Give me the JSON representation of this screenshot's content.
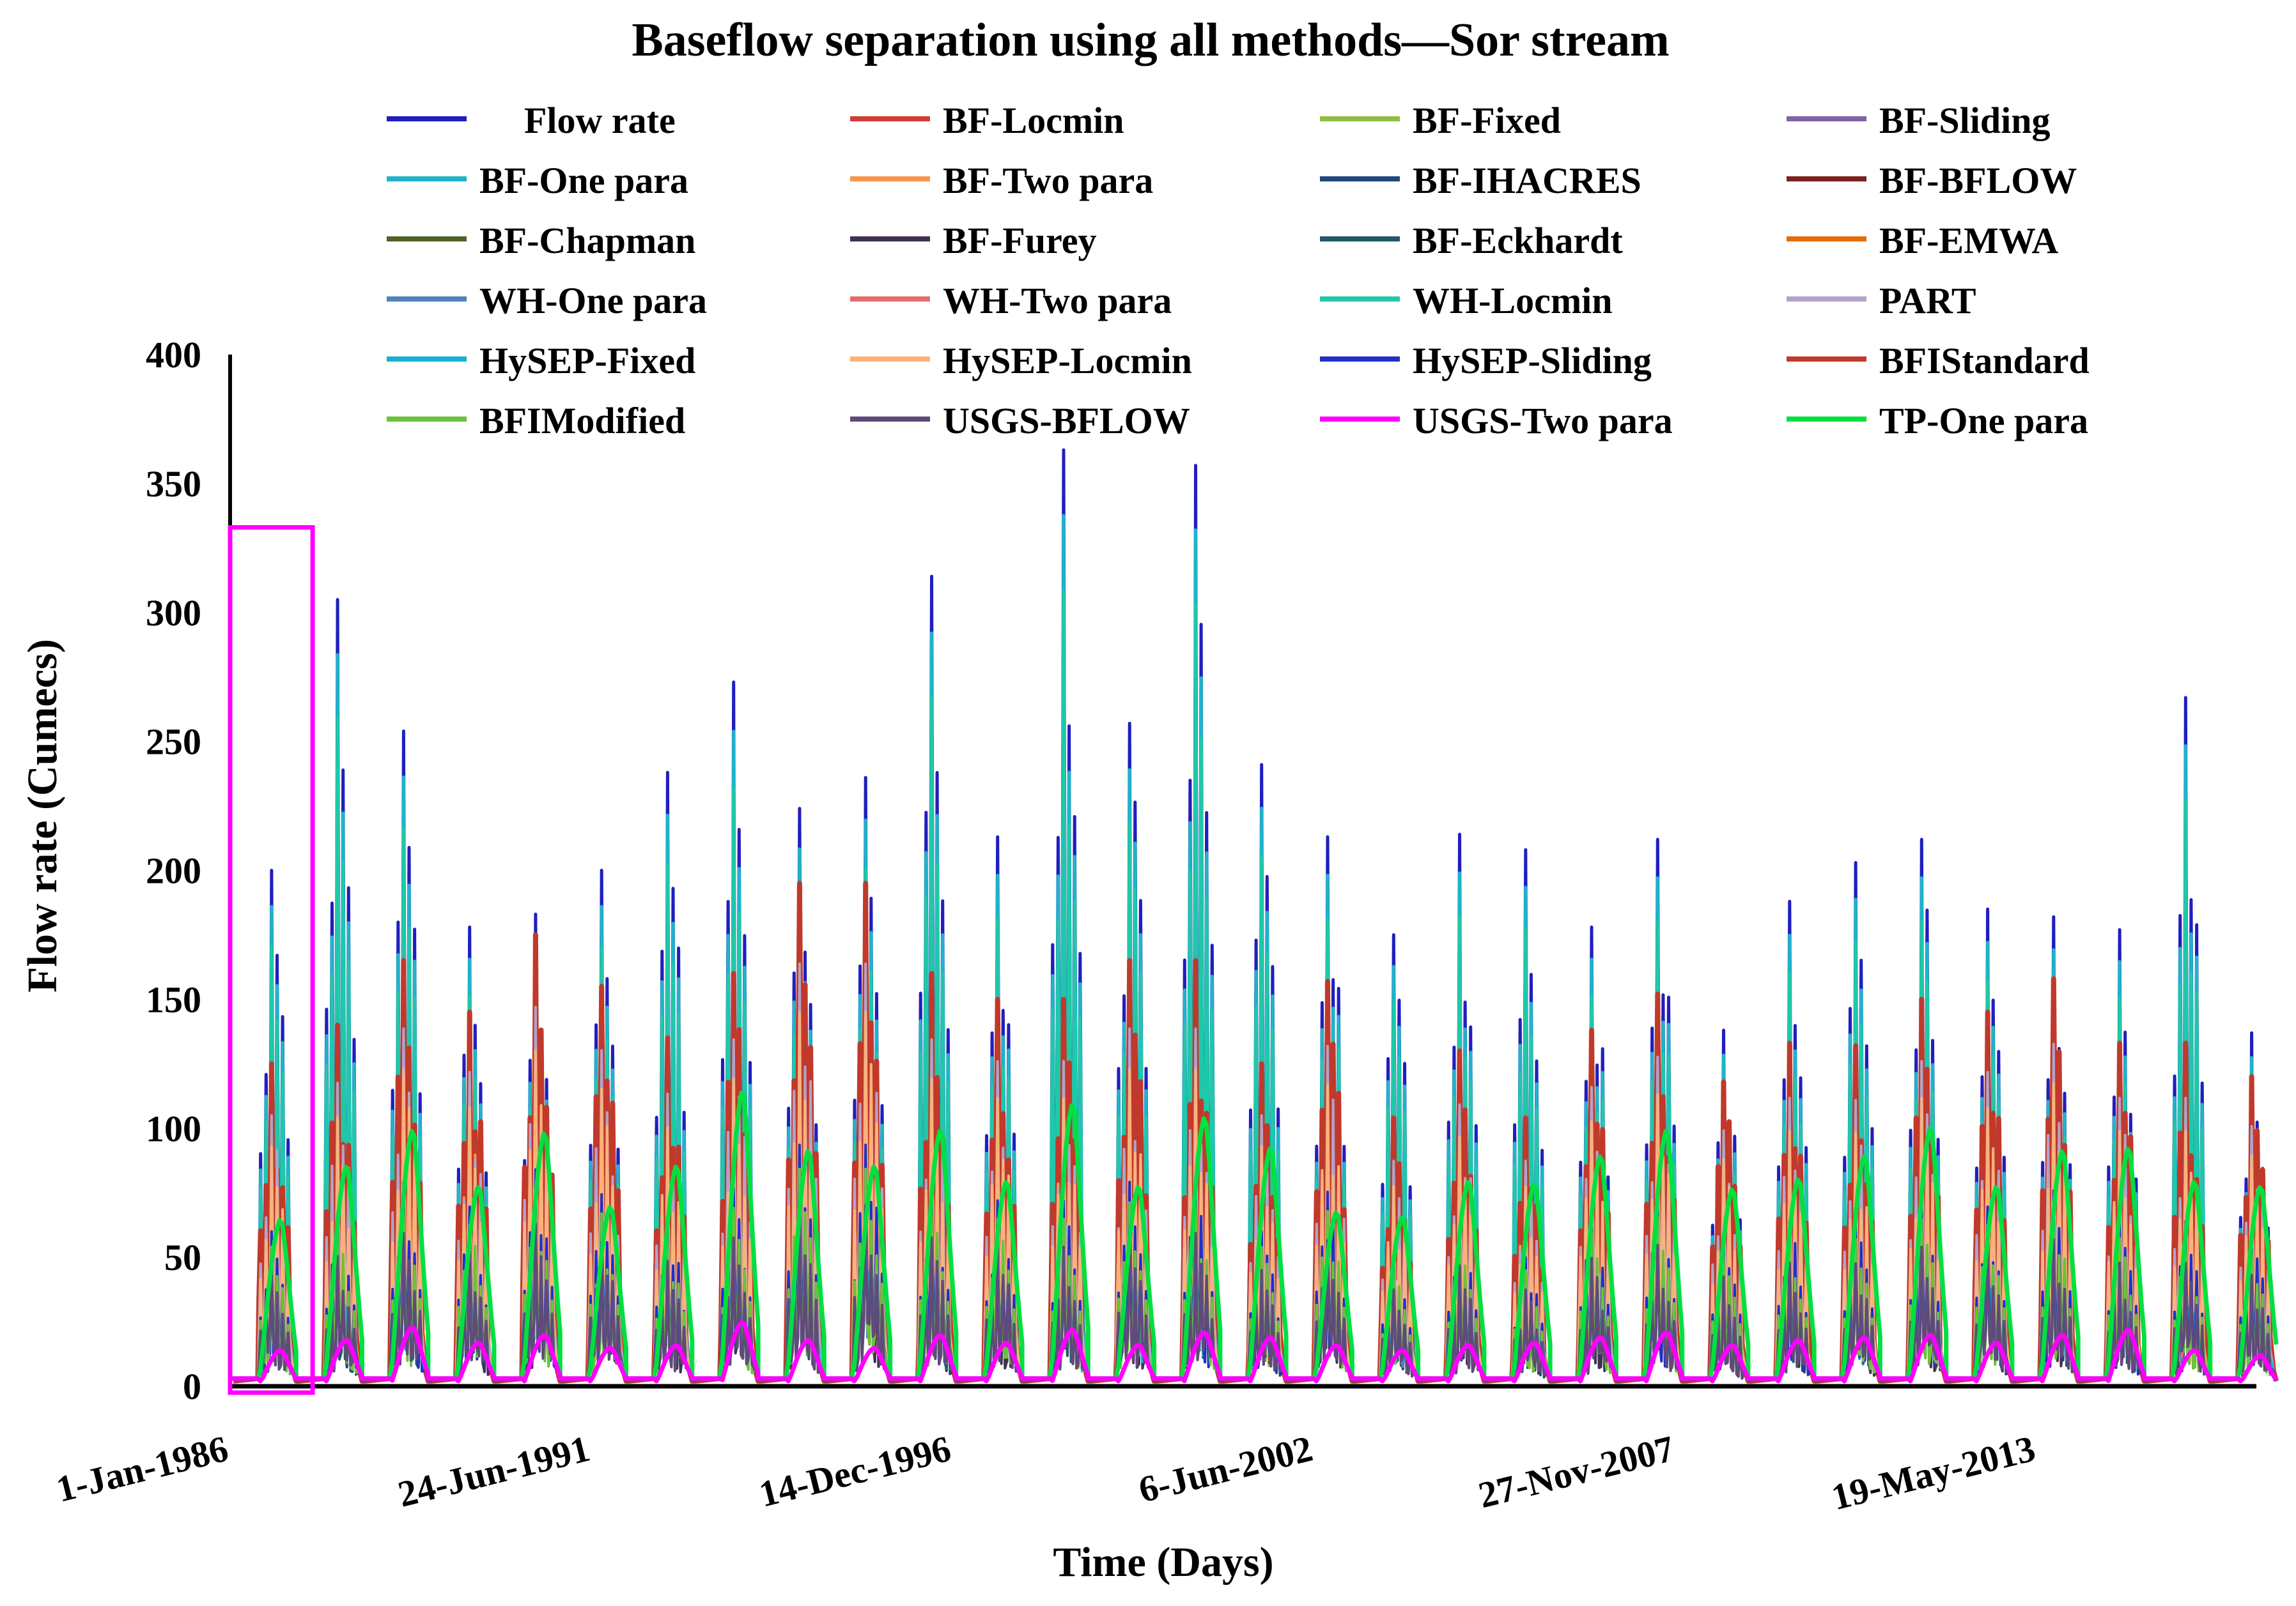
{
  "chart_data": {
    "type": "line",
    "title": "Baseflow separation using all methods—Sor stream",
    "xlabel": "Time (Days)",
    "ylabel": "Flow rate (Cumecs)",
    "ylim": [
      0,
      400
    ],
    "yticks": [
      0,
      50,
      100,
      150,
      200,
      250,
      300,
      350,
      400
    ],
    "x_start_year": 1986.0,
    "x_end_year": 2016.7,
    "xticks": [
      {
        "label": "1-Jan-1986",
        "year": 1986.0
      },
      {
        "label": "24-Jun-1991",
        "year": 1991.48
      },
      {
        "label": "14-Dec-1996",
        "year": 1996.95
      },
      {
        "label": "6-Jun-2002",
        "year": 2002.43
      },
      {
        "label": "27-Nov-2007",
        "year": 2007.91
      },
      {
        "label": "19-May-2013",
        "year": 2013.38
      }
    ],
    "highlight_box": {
      "label": "",
      "x_start_year": 1986.0,
      "x_end_year": 1987.25,
      "y_min": 0,
      "y_max": 333,
      "color": "#ff00ff"
    },
    "series": [
      {
        "name": "Flow rate",
        "color": "#1f1fbf",
        "role": "flow"
      },
      {
        "name": "BF-Locmin",
        "color": "#d43b3b",
        "role": "baseflow",
        "scale": 0.55
      },
      {
        "name": "BF-Fixed",
        "color": "#8fbc45",
        "role": "baseflow",
        "scale": 0.45
      },
      {
        "name": "BF-Sliding",
        "color": "#8064a2",
        "role": "baseflow",
        "scale": 0.4
      },
      {
        "name": "BF-One para",
        "color": "#1eb4c8",
        "role": "flow-echo",
        "scale": 0.93
      },
      {
        "name": "BF-Two para",
        "color": "#f7964a",
        "role": "baseflow",
        "scale": 0.6
      },
      {
        "name": "BF-IHACRES",
        "color": "#1f497d",
        "role": "baseflow",
        "scale": 0.35
      },
      {
        "name": "BF-BFLOW",
        "color": "#7b1f1f",
        "role": "baseflow",
        "scale": 0.5
      },
      {
        "name": "BF-Chapman",
        "color": "#4f6228",
        "role": "baseflow",
        "scale": 0.3
      },
      {
        "name": "BF-Furey",
        "color": "#403152",
        "role": "baseflow",
        "scale": 0.32
      },
      {
        "name": "BF-Eckhardt",
        "color": "#215968",
        "role": "baseflow",
        "scale": 0.38
      },
      {
        "name": "BF-EMWA",
        "color": "#e36c09",
        "role": "baseflow",
        "scale": 0.5
      },
      {
        "name": "WH-One para",
        "color": "#4f81bd",
        "role": "baseflow",
        "scale": 0.42
      },
      {
        "name": "WH-Two para",
        "color": "#e46c6c",
        "role": "baseflow",
        "scale": 0.52
      },
      {
        "name": "WH-Locmin",
        "color": "#1fc8a8",
        "role": "flow-echo",
        "scale": 0.85
      },
      {
        "name": "PART",
        "color": "#b3a2c7",
        "role": "baseflow",
        "scale": 0.7
      },
      {
        "name": "HySEP-Fixed",
        "color": "#17b0d0",
        "role": "baseflow",
        "scale": 0.44
      },
      {
        "name": "HySEP-Locmin",
        "color": "#fab27a",
        "role": "baseflow",
        "scale": 0.62
      },
      {
        "name": "HySEP-Sliding",
        "color": "#2030c8",
        "role": "baseflow",
        "scale": 0.4
      },
      {
        "name": "BFIStandard",
        "color": "#c0392b",
        "role": "standard",
        "scale": 0.72
      },
      {
        "name": "BFIModified",
        "color": "#6cc23a",
        "role": "baseflow",
        "scale": 0.36
      },
      {
        "name": "USGS-BFLOW",
        "color": "#604a7b",
        "role": "baseflow",
        "scale": 0.3
      },
      {
        "name": "USGS-Two para",
        "color": "#ff00ff",
        "role": "low",
        "scale": 0.1
      },
      {
        "name": "TP-One para",
        "color": "#00e040",
        "role": "smooth",
        "scale": 0.5
      }
    ],
    "annual_peaks": [
      {
        "year": 1986,
        "peak": 200
      },
      {
        "year": 1987,
        "peak": 305
      },
      {
        "year": 1988,
        "peak": 254
      },
      {
        "year": 1989,
        "peak": 178
      },
      {
        "year": 1990,
        "peak": 183
      },
      {
        "year": 1991,
        "peak": 200
      },
      {
        "year": 1992,
        "peak": 238
      },
      {
        "year": 1993,
        "peak": 273
      },
      {
        "year": 1994,
        "peak": 224
      },
      {
        "year": 1995,
        "peak": 236
      },
      {
        "year": 1996,
        "peak": 314
      },
      {
        "year": 1997,
        "peak": 213
      },
      {
        "year": 1998,
        "peak": 363
      },
      {
        "year": 1999,
        "peak": 257
      },
      {
        "year": 2000,
        "peak": 357
      },
      {
        "year": 2001,
        "peak": 241
      },
      {
        "year": 2002,
        "peak": 213
      },
      {
        "year": 2003,
        "peak": 175
      },
      {
        "year": 2004,
        "peak": 214
      },
      {
        "year": 2005,
        "peak": 208
      },
      {
        "year": 2006,
        "peak": 178
      },
      {
        "year": 2007,
        "peak": 212
      },
      {
        "year": 2008,
        "peak": 138
      },
      {
        "year": 2009,
        "peak": 188
      },
      {
        "year": 2010,
        "peak": 203
      },
      {
        "year": 2011,
        "peak": 212
      },
      {
        "year": 2012,
        "peak": 185
      },
      {
        "year": 2013,
        "peak": 182
      },
      {
        "year": 2014,
        "peak": 177
      },
      {
        "year": 2015,
        "peak": 267
      },
      {
        "year": 2016,
        "peak": 137
      }
    ],
    "annual_baseflow_peaks": [
      {
        "year": 1986,
        "standard": 125,
        "smooth": 65,
        "low": 14
      },
      {
        "year": 1987,
        "standard": 140,
        "smooth": 86,
        "low": 18
      },
      {
        "year": 1988,
        "standard": 165,
        "smooth": 100,
        "low": 23
      },
      {
        "year": 1989,
        "standard": 145,
        "smooth": 78,
        "low": 17
      },
      {
        "year": 1990,
        "standard": 175,
        "smooth": 99,
        "low": 20
      },
      {
        "year": 1991,
        "standard": 155,
        "smooth": 70,
        "low": 15
      },
      {
        "year": 1992,
        "standard": 135,
        "smooth": 86,
        "low": 16
      },
      {
        "year": 1993,
        "standard": 160,
        "smooth": 115,
        "low": 25
      },
      {
        "year": 1994,
        "standard": 195,
        "smooth": 92,
        "low": 18
      },
      {
        "year": 1995,
        "standard": 195,
        "smooth": 86,
        "low": 15
      },
      {
        "year": 1996,
        "standard": 160,
        "smooth": 100,
        "low": 20
      },
      {
        "year": 1997,
        "standard": 150,
        "smooth": 80,
        "low": 17
      },
      {
        "year": 1998,
        "standard": 150,
        "smooth": 110,
        "low": 22
      },
      {
        "year": 1999,
        "standard": 165,
        "smooth": 78,
        "low": 16
      },
      {
        "year": 2000,
        "standard": 165,
        "smooth": 105,
        "low": 21
      },
      {
        "year": 2001,
        "standard": 125,
        "smooth": 93,
        "low": 19
      },
      {
        "year": 2002,
        "standard": 157,
        "smooth": 68,
        "low": 16
      },
      {
        "year": 2003,
        "standard": 104,
        "smooth": 66,
        "low": 14
      },
      {
        "year": 2004,
        "standard": 130,
        "smooth": 80,
        "low": 16
      },
      {
        "year": 2005,
        "standard": 104,
        "smooth": 79,
        "low": 17
      },
      {
        "year": 2006,
        "standard": 138,
        "smooth": 90,
        "low": 19
      },
      {
        "year": 2007,
        "standard": 152,
        "smooth": 100,
        "low": 21
      },
      {
        "year": 2008,
        "standard": 118,
        "smooth": 77,
        "low": 16
      },
      {
        "year": 2009,
        "standard": 133,
        "smooth": 81,
        "low": 18
      },
      {
        "year": 2010,
        "standard": 132,
        "smooth": 90,
        "low": 19
      },
      {
        "year": 2011,
        "standard": 150,
        "smooth": 101,
        "low": 20
      },
      {
        "year": 2012,
        "standard": 145,
        "smooth": 78,
        "low": 17
      },
      {
        "year": 2013,
        "standard": 158,
        "smooth": 92,
        "low": 20
      },
      {
        "year": 2014,
        "standard": 133,
        "smooth": 93,
        "low": 22
      },
      {
        "year": 2015,
        "standard": 133,
        "smooth": 80,
        "low": 14
      },
      {
        "year": 2016,
        "standard": 120,
        "smooth": 78,
        "low": 12
      }
    ]
  }
}
